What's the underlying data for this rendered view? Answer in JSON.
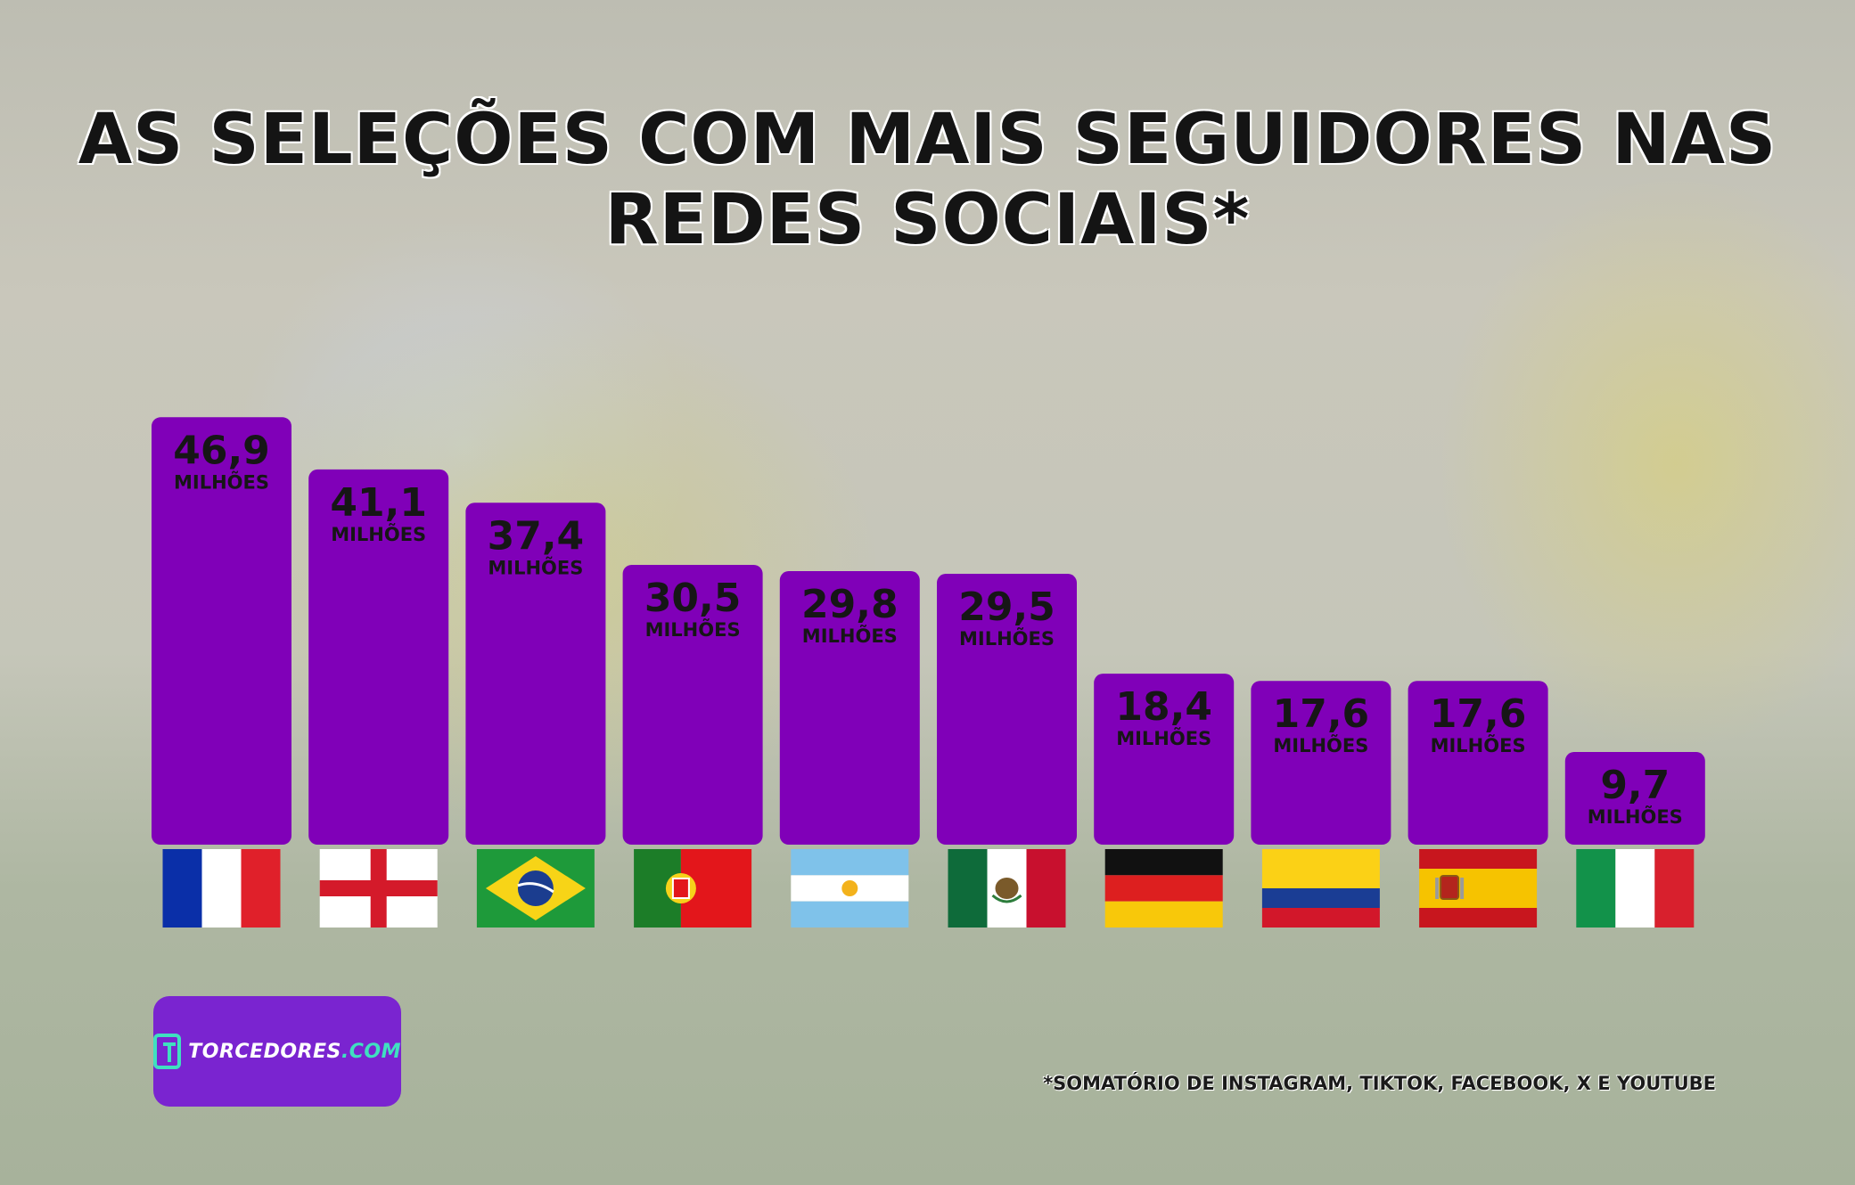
{
  "title_line1": "AS SELEÇÕES COM MAIS SEGUIDORES NAS",
  "title_line2": "REDES SOCIAIS*",
  "footnote": "*SOMATÓRIO DE INSTAGRAM, TIKTOK, FACEBOOK, X E YOUTUBE",
  "logo": {
    "text": "TORCEDORES",
    "suffix": ".COM"
  },
  "colors": {
    "bar": "#8000b8",
    "text": "#161616",
    "logo_bg": "#7a24d0",
    "logo_accent": "#3fe0c0"
  },
  "chart_data": {
    "type": "bar",
    "title": "AS SELEÇÕES COM MAIS SEGUIDORES NAS REDES SOCIAIS*",
    "unit_label": "MILHÕES",
    "categories": [
      "France",
      "England",
      "Brazil",
      "Portugal",
      "Argentina",
      "Mexico",
      "Germany",
      "Colombia",
      "Spain",
      "Italy"
    ],
    "flags": [
      "france-flag-icon",
      "england-flag-icon",
      "brazil-flag-icon",
      "portugal-flag-icon",
      "argentina-flag-icon",
      "mexico-flag-icon",
      "germany-flag-icon",
      "colombia-flag-icon",
      "spain-flag-icon",
      "italy-flag-icon"
    ],
    "values": [
      46.9,
      41.1,
      37.4,
      30.5,
      29.8,
      29.5,
      18.4,
      17.6,
      17.6,
      9.7
    ],
    "labels": [
      "46,9",
      "41,1",
      "37,4",
      "30,5",
      "29,8",
      "29,5",
      "18,4",
      "17,6",
      "17,6",
      "9,7"
    ],
    "ylim": [
      0,
      50
    ],
    "grid": false,
    "legend": "none"
  }
}
